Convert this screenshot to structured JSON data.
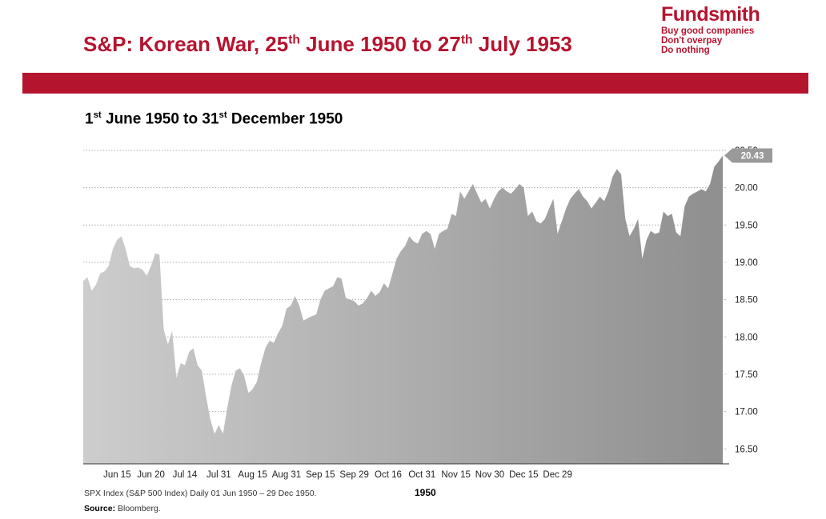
{
  "header": {
    "title_main": "S&P: Korean War, 25",
    "title_sup1": "th",
    "title_mid": " June 1950 to 27",
    "title_sup2": "th",
    "title_end": " July 1953"
  },
  "brand": {
    "name": "Fundsmith",
    "tagline": [
      "Buy good companies",
      "Don't overpay",
      "Do nothing"
    ],
    "color": "#b5142f"
  },
  "subtitle": {
    "p1": "1",
    "sup1": "st",
    "p2": " June 1950 to 31",
    "sup2": "st",
    "p3": " December 1950"
  },
  "footer": {
    "note": "SPX Index (S&P 500 Index) Daily 01 Jun 1950 – 29 Dec 1950.",
    "source_label": "Source:",
    "source_text": " Bloomberg."
  },
  "chart_data": {
    "type": "area",
    "xlabel": "1950",
    "ylabel": "",
    "ylim": [
      16.3,
      20.5
    ],
    "yticks": [
      16.5,
      17.0,
      17.5,
      18.0,
      18.5,
      19.0,
      19.5,
      20.0,
      20.5
    ],
    "ytick_labels": [
      "16.50",
      "17.00",
      "17.50",
      "18.00",
      "18.50",
      "19.00",
      "19.50",
      "20.00",
      "20.50"
    ],
    "xtick_labels": [
      "Jun 15",
      "Jun 20",
      "Jul 14",
      "Jul 31",
      "Aug 15",
      "Aug 31",
      "Sep 15",
      "Sep 29",
      "Oct 16",
      "Oct 31",
      "Nov 15",
      "Nov 30",
      "Dec 15",
      "Dec 29"
    ],
    "xtick_index": [
      8,
      16,
      24,
      32,
      40,
      48,
      56,
      64,
      72,
      80,
      88,
      96,
      104,
      112
    ],
    "grid": true,
    "fill_color_start": "#cdcdcd",
    "fill_color_end": "#8f8f8f",
    "last_value_label": "20.43",
    "last_value_color": "#9a9a9a",
    "values": [
      18.75,
      18.8,
      18.62,
      18.7,
      18.85,
      18.88,
      18.95,
      19.18,
      19.3,
      19.35,
      19.18,
      18.95,
      18.92,
      18.93,
      18.9,
      18.82,
      18.95,
      19.12,
      19.1,
      18.1,
      17.9,
      18.08,
      17.45,
      17.65,
      17.62,
      17.8,
      17.85,
      17.62,
      17.55,
      17.2,
      16.9,
      16.7,
      16.82,
      16.7,
      17.05,
      17.35,
      17.55,
      17.58,
      17.48,
      17.25,
      17.3,
      17.4,
      17.65,
      17.85,
      17.95,
      17.92,
      18.05,
      18.15,
      18.38,
      18.42,
      18.55,
      18.42,
      18.22,
      18.25,
      18.28,
      18.3,
      18.5,
      18.62,
      18.65,
      18.68,
      18.8,
      18.78,
      18.52,
      18.5,
      18.48,
      18.42,
      18.45,
      18.52,
      18.62,
      18.55,
      18.6,
      18.72,
      18.65,
      18.85,
      19.05,
      19.15,
      19.22,
      19.35,
      19.28,
      19.25,
      19.38,
      19.42,
      19.38,
      19.18,
      19.38,
      19.42,
      19.45,
      19.65,
      19.62,
      19.95,
      19.85,
      19.95,
      20.05,
      19.92,
      19.8,
      19.85,
      19.72,
      19.85,
      19.95,
      20.0,
      19.95,
      19.92,
      19.98,
      20.05,
      20.0,
      19.62,
      19.68,
      19.55,
      19.52,
      19.58,
      19.72,
      19.85,
      19.38,
      19.55,
      19.72,
      19.85,
      19.92,
      19.98,
      19.88,
      19.82,
      19.72,
      19.8,
      19.88,
      19.82,
      19.95,
      20.15,
      20.25,
      20.18,
      19.58,
      19.35,
      19.45,
      19.58,
      19.05,
      19.3,
      19.42,
      19.38,
      19.4,
      19.68,
      19.62,
      19.65,
      19.4,
      19.35,
      19.75,
      19.88,
      19.92,
      19.95,
      19.98,
      19.95,
      20.05,
      20.28,
      20.35,
      20.43
    ]
  }
}
